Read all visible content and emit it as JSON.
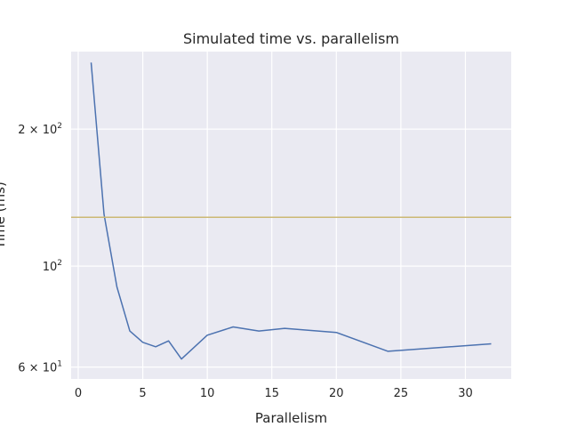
{
  "chart_data": {
    "type": "line",
    "title": "Simulated time vs. parallelism",
    "xlabel": "Parallelism",
    "ylabel": "Time (ms)",
    "xlim": [
      -0.55,
      33.55
    ],
    "ylim": [
      56.5,
      296
    ],
    "yscale": "log",
    "grid": true,
    "xticks": [
      0,
      5,
      10,
      15,
      20,
      25,
      30
    ],
    "yticks": [
      {
        "value": 200,
        "base": "2 × 10",
        "exp": "2"
      },
      {
        "value": 100,
        "base": "10",
        "exp": "2"
      },
      {
        "value": 60,
        "base": "6 × 10",
        "exp": "1"
      }
    ],
    "series": [
      {
        "color": "#4c72b0",
        "x": [
          1,
          2,
          3,
          4,
          5,
          6,
          7,
          8,
          10,
          12,
          14,
          16,
          20,
          24,
          32
        ],
        "y": [
          280,
          130,
          90,
          72,
          68,
          66.5,
          68.5,
          62.5,
          70.5,
          73.5,
          72,
          73,
          71.5,
          65,
          67.5
        ]
      },
      {
        "color": "#ccb974",
        "type": "hline",
        "y": 128
      }
    ]
  }
}
